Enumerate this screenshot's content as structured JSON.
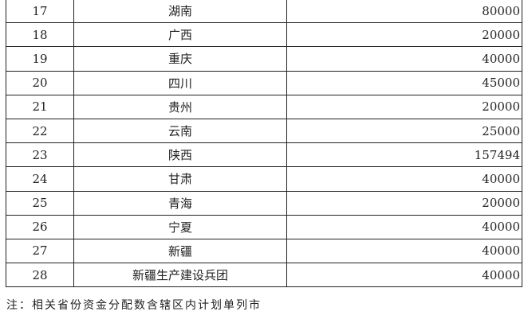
{
  "rows": [
    {
      "no": "17",
      "name": "湖南",
      "amount": "80000"
    },
    {
      "no": "18",
      "name": "广西",
      "amount": "20000"
    },
    {
      "no": "19",
      "name": "重庆",
      "amount": "40000"
    },
    {
      "no": "20",
      "name": "四川",
      "amount": "45000"
    },
    {
      "no": "21",
      "name": "贵州",
      "amount": "20000"
    },
    {
      "no": "22",
      "name": "云南",
      "amount": "25000"
    },
    {
      "no": "23",
      "name": "陕西",
      "amount": "157494"
    },
    {
      "no": "24",
      "name": "甘肃",
      "amount": "40000"
    },
    {
      "no": "25",
      "name": "青海",
      "amount": "20000"
    },
    {
      "no": "26",
      "name": "宁夏",
      "amount": "40000"
    },
    {
      "no": "27",
      "name": "新疆",
      "amount": "40000"
    },
    {
      "no": "28",
      "name": "新疆生产建设兵团",
      "amount": "40000"
    }
  ],
  "note": "注：相关省份资金分配数含辖区内计划单列市"
}
